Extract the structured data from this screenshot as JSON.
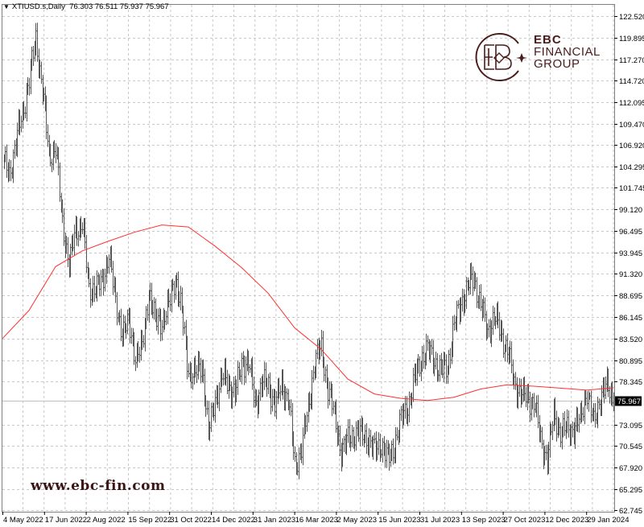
{
  "header": {
    "symbol": "XTIUSD.s,Daily",
    "ohlc": "76.303 76.511 75.937 75.967",
    "menu_icon": "triangle-down-icon"
  },
  "watermark": "www.ebc-fin.com",
  "logo": {
    "line1": "EBC",
    "line2": "FINANCIAL",
    "line3": "GROUP",
    "color": "#4a1c1c"
  },
  "colors": {
    "bars": "#555555",
    "ma": "#ff3030",
    "grid": "#c8c8c8",
    "price_line": "#c0c0c0",
    "price_label_bg": "#000000"
  },
  "chart_data": {
    "type": "ohlc-bar",
    "symbol": "XTIUSD.s",
    "timeframe": "Daily",
    "last_price": "75.967",
    "ylim": [
      62.745,
      122.52
    ],
    "grid": true,
    "y_ticks": [
      "122.520",
      "119.895",
      "117.270",
      "114.720",
      "112.095",
      "109.470",
      "106.920",
      "104.295",
      "101.745",
      "99.120",
      "96.495",
      "93.945",
      "91.320",
      "88.695",
      "86.145",
      "83.520",
      "80.895",
      "78.345",
      "73.095",
      "70.545",
      "67.920",
      "65.295",
      "62.745"
    ],
    "x_ticks": [
      "4 May 2022",
      "17 Jun 2022",
      "2 Aug 2022",
      "15 Sep 2022",
      "31 Oct 2022",
      "14 Dec 2022",
      "31 Jan 2023",
      "16 Mar 2023",
      "2 May 2023",
      "15 Jun 2023",
      "31 Jul 2023",
      "13 Sep 2023",
      "27 Oct 2023",
      "12 Dec 2023",
      "29 Jan 2024"
    ],
    "x": [
      "2022-05-04",
      "2022-05-11",
      "2022-05-18",
      "2022-05-25",
      "2022-06-02",
      "2022-06-09",
      "2022-06-16",
      "2022-06-23",
      "2022-07-01",
      "2022-07-08",
      "2022-07-15",
      "2022-07-22",
      "2022-07-30",
      "2022-08-06",
      "2022-08-13",
      "2022-08-20",
      "2022-08-28",
      "2022-09-04",
      "2022-09-11",
      "2022-09-18",
      "2022-09-26",
      "2022-10-03",
      "2022-10-10",
      "2022-10-17",
      "2022-10-25",
      "2022-11-01",
      "2022-11-08",
      "2022-11-15",
      "2022-11-23",
      "2022-11-30",
      "2022-12-07",
      "2022-12-14",
      "2022-12-22",
      "2022-12-29",
      "2023-01-05",
      "2023-01-12",
      "2023-01-20",
      "2023-01-27",
      "2023-02-03",
      "2023-02-10",
      "2023-02-18",
      "2023-02-25",
      "2023-03-04",
      "2023-03-11",
      "2023-03-19",
      "2023-03-26",
      "2023-04-02",
      "2023-04-09",
      "2023-04-17",
      "2023-04-24",
      "2023-05-01",
      "2023-05-08",
      "2023-05-16",
      "2023-05-23",
      "2023-05-30",
      "2023-06-06",
      "2023-06-14",
      "2023-06-21",
      "2023-06-28",
      "2023-07-05",
      "2023-07-13",
      "2023-07-20",
      "2023-07-27",
      "2023-08-03",
      "2023-08-11",
      "2023-08-18",
      "2023-08-25",
      "2023-09-01",
      "2023-09-09",
      "2023-09-16",
      "2023-09-23",
      "2023-09-30",
      "2023-10-08",
      "2023-10-15",
      "2023-10-22",
      "2023-10-29",
      "2023-11-06",
      "2023-11-13",
      "2023-11-20",
      "2023-11-27",
      "2023-12-05",
      "2023-12-12",
      "2023-12-19",
      "2023-12-26",
      "2024-01-03",
      "2024-01-10",
      "2024-01-17",
      "2024-01-24",
      "2024-02-01",
      "2024-02-08",
      "2024-02-15",
      "2024-02-22",
      "2024-03-01"
    ],
    "series": [
      {
        "kind": "close",
        "values": [
          105.0,
          103.54,
          107.14,
          110.84,
          114.73,
          119.79,
          113.76,
          105.48,
          106.75,
          97.21,
          92.83,
          96.23,
          97.89,
          88.93,
          90.2,
          89.71,
          94.29,
          87.47,
          84.55,
          85.14,
          81.63,
          82.12,
          89.42,
          85.53,
          85.72,
          87.28,
          91.17,
          86.5,
          79.69,
          79.0,
          80.66,
          71.9,
          76.38,
          78.71,
          78.22,
          76.67,
          80.66,
          80.56,
          75.79,
          77.93,
          77.93,
          75.6,
          77.74,
          76.47,
          68.0,
          70.44,
          74.82,
          80.95,
          82.12,
          77.54,
          73.94,
          69.95,
          71.22,
          72.19,
          71.9,
          71.51,
          69.85,
          70.92,
          68.59,
          70.73,
          73.65,
          75.4,
          78.42,
          81.15,
          82.12,
          80.95,
          79.39,
          80.27,
          85.04,
          87.86,
          89.71,
          90.88,
          87.47,
          84.36,
          86.21,
          84.26,
          82.22,
          78.03,
          77.06,
          75.99,
          76.08,
          71.02,
          69.17,
          74.04,
          72.48,
          72.38,
          72.77,
          73.65,
          77.35,
          72.97,
          76.76,
          77.64,
          75.967
        ]
      },
      {
        "kind": "moving-average",
        "points": [
          {
            "date": "2022-05-04",
            "value": 83.5
          },
          {
            "date": "2022-06-02",
            "value": 86.9
          },
          {
            "date": "2022-07-01",
            "value": 92.2
          },
          {
            "date": "2022-07-30",
            "value": 94.1
          },
          {
            "date": "2022-08-28",
            "value": 95.3
          },
          {
            "date": "2022-09-26",
            "value": 96.4
          },
          {
            "date": "2022-10-25",
            "value": 97.25
          },
          {
            "date": "2022-11-23",
            "value": 97.0
          },
          {
            "date": "2022-12-22",
            "value": 94.7
          },
          {
            "date": "2023-01-20",
            "value": 92.1
          },
          {
            "date": "2023-02-18",
            "value": 89.0
          },
          {
            "date": "2023-03-19",
            "value": 84.8
          },
          {
            "date": "2023-04-17",
            "value": 82.2
          },
          {
            "date": "2023-05-16",
            "value": 78.6
          },
          {
            "date": "2023-06-14",
            "value": 76.8
          },
          {
            "date": "2023-07-13",
            "value": 76.27
          },
          {
            "date": "2023-08-11",
            "value": 76.0
          },
          {
            "date": "2023-09-09",
            "value": 76.4
          },
          {
            "date": "2023-10-08",
            "value": 77.4
          },
          {
            "date": "2023-11-06",
            "value": 77.9
          },
          {
            "date": "2023-12-05",
            "value": 77.74
          },
          {
            "date": "2024-01-03",
            "value": 77.5
          },
          {
            "date": "2024-02-01",
            "value": 77.26
          },
          {
            "date": "2024-03-01",
            "value": 77.54
          }
        ]
      }
    ]
  }
}
